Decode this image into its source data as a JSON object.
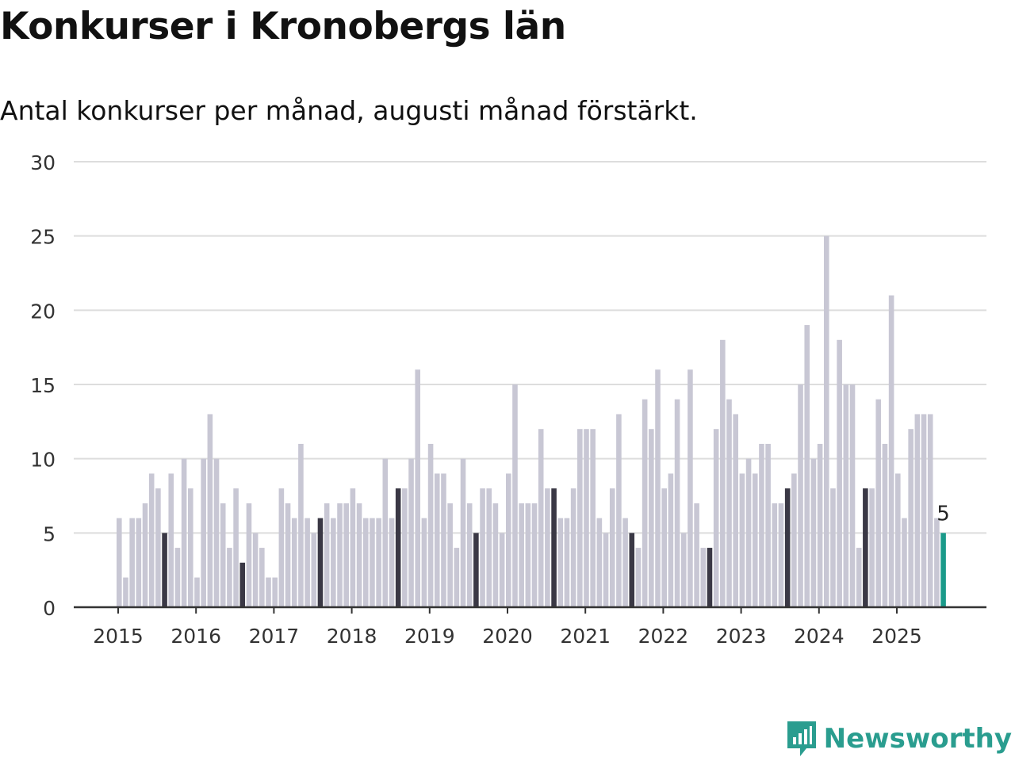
{
  "title": "Konkurser i Kronobergs län",
  "subtitle": "Antal konkurser per månad, augusti månad förstärkt.",
  "brand": {
    "name": "Newsworthy",
    "icon": "newsworthy-logo-icon",
    "color": "#2a9d8f"
  },
  "colors": {
    "bar": "#c8c7d4",
    "highlight": "#3a3845",
    "latest": "#1a9a8a",
    "grid": "#dddddd",
    "axis": "#333333"
  },
  "chart_data": {
    "type": "bar",
    "xlabel": "",
    "ylabel": "",
    "ylim": [
      0,
      30
    ],
    "yticks": [
      0,
      5,
      10,
      15,
      20,
      25,
      30
    ],
    "xticks": [
      "2015",
      "2016",
      "2017",
      "2018",
      "2019",
      "2020",
      "2021",
      "2022",
      "2023",
      "2024",
      "2025"
    ],
    "start": "2015-01",
    "end": "2025-08",
    "highlight_month": "augusti",
    "last_value_label": "5",
    "values": [
      6,
      2,
      6,
      6,
      7,
      9,
      8,
      5,
      9,
      4,
      10,
      8,
      2,
      10,
      13,
      10,
      7,
      4,
      8,
      3,
      7,
      5,
      4,
      2,
      2,
      8,
      7,
      6,
      11,
      6,
      5,
      6,
      7,
      6,
      7,
      7,
      8,
      7,
      6,
      6,
      6,
      10,
      6,
      8,
      8,
      10,
      16,
      6,
      11,
      9,
      9,
      7,
      4,
      10,
      7,
      5,
      8,
      8,
      7,
      5,
      9,
      15,
      7,
      7,
      7,
      12,
      8,
      8,
      6,
      6,
      8,
      12,
      12,
      12,
      6,
      5,
      8,
      13,
      6,
      5,
      4,
      14,
      12,
      16,
      8,
      9,
      14,
      5,
      16,
      7,
      4,
      4,
      12,
      18,
      14,
      13,
      9,
      10,
      9,
      11,
      11,
      7,
      7,
      8,
      9,
      15,
      19,
      10,
      11,
      25,
      8,
      18,
      15,
      15,
      4,
      8,
      8,
      14,
      11,
      21,
      9,
      6,
      12,
      13,
      13,
      13,
      6,
      5
    ]
  }
}
